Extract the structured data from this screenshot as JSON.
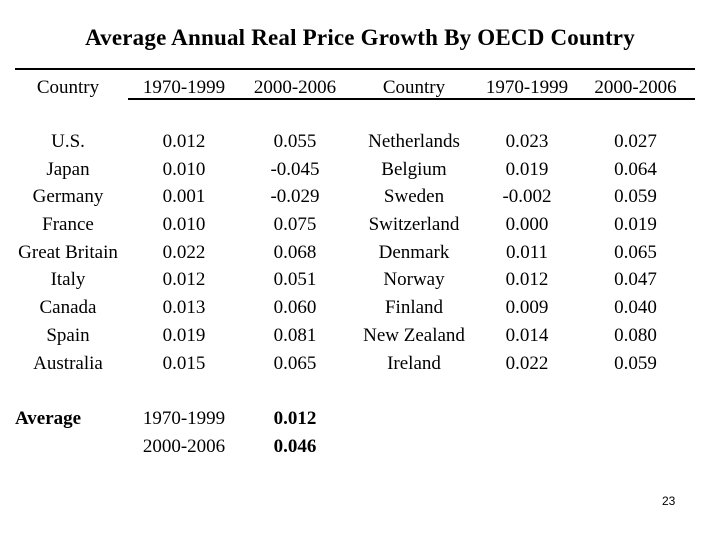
{
  "title": "Average Annual Real Price Growth By OECD Country",
  "colors": {
    "background": "#ffffff",
    "text": "#000000"
  },
  "table": {
    "headers": [
      "Country",
      "1970-1999",
      "2000-2006",
      "Country",
      "1970-1999",
      "2000-2006"
    ],
    "rows": [
      [
        "U.S.",
        "0.012",
        "0.055",
        "Netherlands",
        "0.023",
        "0.027"
      ],
      [
        "Japan",
        "0.010",
        "-0.045",
        "Belgium",
        "0.019",
        "0.064"
      ],
      [
        "Germany",
        "0.001",
        "-0.029",
        "Sweden",
        "-0.002",
        "0.059"
      ],
      [
        "France",
        "0.010",
        "0.075",
        "Switzerland",
        "0.000",
        "0.019"
      ],
      [
        "Great Britain",
        "0.022",
        "0.068",
        "Denmark",
        "0.011",
        "0.065"
      ],
      [
        "Italy",
        "0.012",
        "0.051",
        "Norway",
        "0.012",
        "0.047"
      ],
      [
        "Canada",
        "0.013",
        "0.060",
        "Finland",
        "0.009",
        "0.040"
      ],
      [
        "Spain",
        "0.019",
        "0.081",
        "New Zealand",
        "0.014",
        "0.080"
      ],
      [
        "Australia",
        "0.015",
        "0.065",
        "Ireland",
        "0.022",
        "0.059"
      ]
    ]
  },
  "average": {
    "label": "Average",
    "rows": [
      {
        "period": "1970-1999",
        "value": "0.012"
      },
      {
        "period": "2000-2006",
        "value": "0.046"
      }
    ]
  },
  "page_number": "23"
}
